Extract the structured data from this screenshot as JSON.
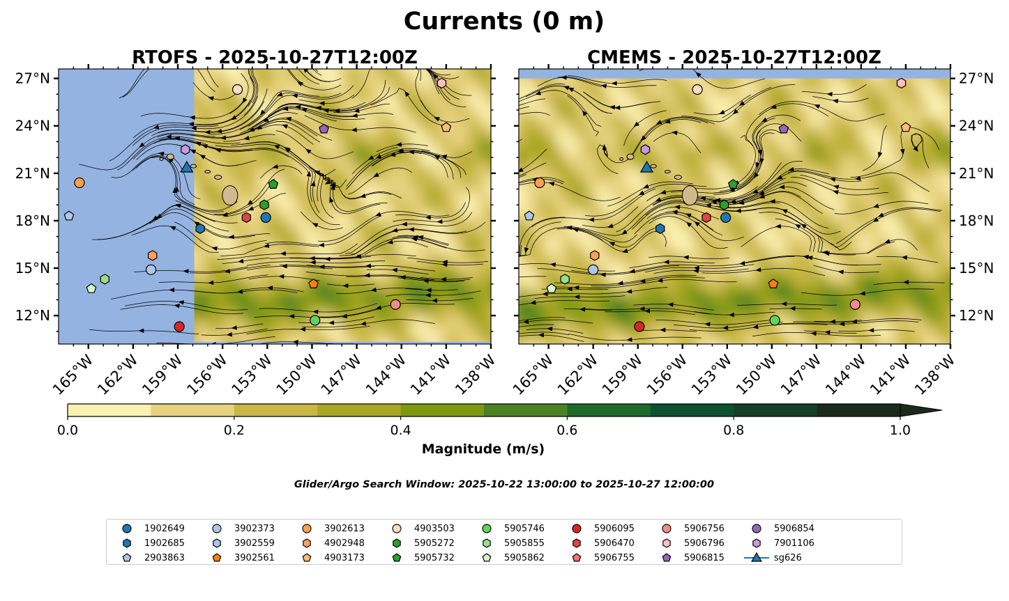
{
  "chart_data": {
    "type": "map-streamplot",
    "title": "Currents (0 m)",
    "subtitle": "Glider/Argo Search Window: 2025-10-22 13:00:00 to 2025-10-27 12:00:00",
    "x_domain": [
      -167,
      -138
    ],
    "y_domain": [
      10.2,
      27.6
    ],
    "x_ticks": [
      {
        "value": -165,
        "label": "165°W"
      },
      {
        "value": -162,
        "label": "162°W"
      },
      {
        "value": -159,
        "label": "159°W"
      },
      {
        "value": -156,
        "label": "156°W"
      },
      {
        "value": -153,
        "label": "153°W"
      },
      {
        "value": -150,
        "label": "150°W"
      },
      {
        "value": -147,
        "label": "147°W"
      },
      {
        "value": -144,
        "label": "144°W"
      },
      {
        "value": -141,
        "label": "141°W"
      },
      {
        "value": -138,
        "label": "138°W"
      }
    ],
    "y_ticks": [
      {
        "value": 27,
        "label": "27°N"
      },
      {
        "value": 24,
        "label": "24°N"
      },
      {
        "value": 21,
        "label": "21°N"
      },
      {
        "value": 18,
        "label": "18°N"
      },
      {
        "value": 15,
        "label": "15°N"
      },
      {
        "value": 12,
        "label": "12°N"
      }
    ],
    "panels": [
      {
        "title": "RTOFS - 2025-10-27T12:00Z",
        "data_west_edge_lon": -157.9
      },
      {
        "title": "CMEMS - 2025-10-27T12:00Z",
        "data_north_edge_lat": 27.0
      }
    ],
    "colorbar": {
      "label": "Magnitude (m/s)",
      "levels": [
        0.0,
        0.1,
        0.2,
        0.3,
        0.4,
        0.5,
        0.6,
        0.7,
        0.8,
        0.9,
        1.0
      ],
      "colors": [
        "#fbf0b0",
        "#e6d27e",
        "#c8b645",
        "#a9a624",
        "#7f9812",
        "#4d8224",
        "#1d6a2b",
        "#0d5230",
        "#173e29",
        "#1c2a1e"
      ],
      "extend": "max",
      "tick_labels": [
        "0.0",
        "0.2",
        "0.4",
        "0.6",
        "0.8",
        "1.0"
      ]
    },
    "series": [
      {
        "name": "1902649",
        "marker": "circle",
        "color": "#1f77b4",
        "lon": -153.1,
        "lat": 18.2
      },
      {
        "name": "1902685",
        "marker": "hexagon",
        "color": "#1f77b4",
        "lon": -157.5,
        "lat": 17.5
      },
      {
        "name": "2903863",
        "marker": "pentagon",
        "color": "#aec7e8",
        "lon": -166.3,
        "lat": 18.3
      },
      {
        "name": "3902373",
        "marker": "circle",
        "color": "#aec7e8",
        "lon": -160.8,
        "lat": 14.9
      },
      {
        "name": "3902559",
        "marker": "hexagon",
        "color": "#aec7e8",
        "lon": null,
        "lat": null
      },
      {
        "name": "3902561",
        "marker": "pentagon",
        "color": "#ff7f0e",
        "lon": -149.9,
        "lat": 14.0
      },
      {
        "name": "3902613",
        "marker": "circle",
        "color": "#ffa04c",
        "lon": -165.6,
        "lat": 20.4
      },
      {
        "name": "4902948",
        "marker": "hexagon",
        "color": "#ffa060",
        "lon": -160.7,
        "lat": 15.8
      },
      {
        "name": "4903173",
        "marker": "pentagon",
        "color": "#ffbb78",
        "lon": -141.0,
        "lat": 23.9
      },
      {
        "name": "4903503",
        "marker": "circle",
        "color": "#ffddc2",
        "lon": -155.0,
        "lat": 26.3
      },
      {
        "name": "5905272",
        "marker": "hexagon",
        "color": "#2ca02c",
        "lon": -153.2,
        "lat": 19.0
      },
      {
        "name": "5905732",
        "marker": "pentagon",
        "color": "#2ca02c",
        "lon": -152.6,
        "lat": 20.3
      },
      {
        "name": "5905746",
        "marker": "circle",
        "color": "#5ed45e",
        "lon": -149.8,
        "lat": 11.7
      },
      {
        "name": "5905855",
        "marker": "hexagon",
        "color": "#98df8a",
        "lon": -163.9,
        "lat": 14.3
      },
      {
        "name": "5905862",
        "marker": "pentagon",
        "color": "#d4fbc8",
        "lon": -164.8,
        "lat": 13.7
      },
      {
        "name": "5906095",
        "marker": "circle",
        "color": "#d62728",
        "lon": -158.9,
        "lat": 11.3
      },
      {
        "name": "5906470",
        "marker": "hexagon",
        "color": "#e04545",
        "lon": -154.4,
        "lat": 18.2
      },
      {
        "name": "5906755",
        "marker": "pentagon",
        "color": "#ff7070",
        "lon": null,
        "lat": null
      },
      {
        "name": "5906756",
        "marker": "circle",
        "color": "#f08c8c",
        "lon": -144.4,
        "lat": 12.7
      },
      {
        "name": "5906796",
        "marker": "hexagon",
        "color": "#ffc0c0",
        "lon": -141.3,
        "lat": 26.7
      },
      {
        "name": "5906815",
        "marker": "pentagon",
        "color": "#9467bd",
        "lon": -149.2,
        "lat": 23.8
      },
      {
        "name": "5906854",
        "marker": "circle",
        "color": "#9467bd",
        "lon": null,
        "lat": null
      },
      {
        "name": "7901106",
        "marker": "hexagon",
        "color": "#c49ae0",
        "lon": -158.5,
        "lat": 22.5
      },
      {
        "name": "sg626",
        "marker": "triangle",
        "color": "#1f77b4",
        "lon": -158.4,
        "lat": 21.3
      }
    ],
    "cmems_offsets": {
      "1902649": [
        0.0,
        0.0
      ],
      "1902685": [
        0.0,
        0.0
      ]
    }
  },
  "colors": {
    "ocean_mask": "#95b3e0",
    "land": "#d1b88f",
    "streamline": "#000000",
    "legend_border": "#cccccc"
  }
}
